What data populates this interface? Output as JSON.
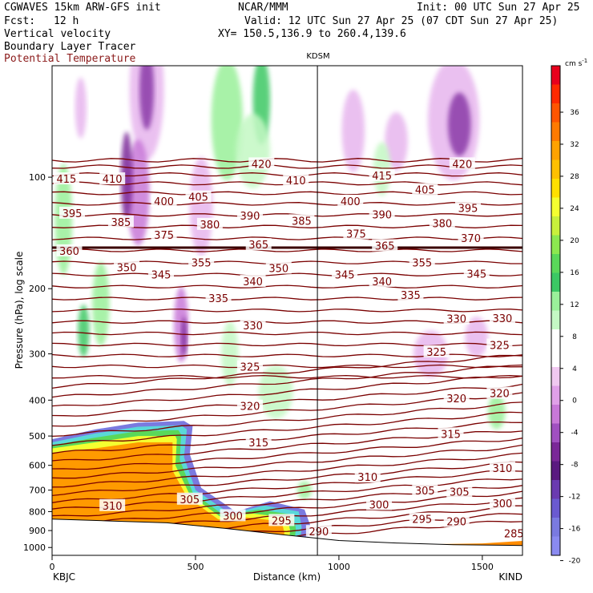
{
  "header": {
    "model": "CGWAVES 15km ARW-GFS init",
    "org": "NCAR/MMM",
    "init": "Init: 00 UTC Sun 27 Apr 25",
    "fcst_label": "Fcst:",
    "fcst_value": "12 h",
    "valid": "Valid: 12 UTC Sun 27 Apr 25 (07 CDT Sun 27 Apr 25)",
    "xy": "XY= 150.5,136.9 to 260.4,139.6",
    "field1": "Vertical velocity",
    "field2": "Boundary Layer Tracer",
    "field3": "Potential Temperature"
  },
  "colors": {
    "theta": "#7a0000",
    "terrain": "#000000"
  },
  "chart_data": {
    "type": "heatmap",
    "title": "KDSM",
    "xlabel": "Distance (km)",
    "ylabel": "Pressure (hPa), log scale",
    "x_ticks": [
      "0",
      "500",
      "1000",
      "1500"
    ],
    "xlim": [
      0,
      1640
    ],
    "y_ticks": [
      "100",
      "200",
      "300",
      "400",
      "500",
      "600",
      "700",
      "800",
      "900",
      "1000"
    ],
    "ylim": [
      1050,
      50
    ],
    "y_scale": "log",
    "start_station": "KBJC",
    "end_station": "KIND",
    "marker_station": "KDSM",
    "marker_x": 925,
    "colorbar": {
      "unit": "cm s",
      "unit_exp": "-1",
      "labels": [
        "36",
        "32",
        "28",
        "24",
        "20",
        "16",
        "12",
        "8",
        "4",
        "0",
        "-4",
        "-8",
        "-12",
        "-16",
        "-20"
      ],
      "colors": [
        "#e8001c",
        "#ff2a00",
        "#ff5500",
        "#ff7a00",
        "#ffa200",
        "#ffc000",
        "#ffe000",
        "#f4ff30",
        "#c8f03c",
        "#8ce850",
        "#5ad85a",
        "#3cc864",
        "#9af09a",
        "#c4f8c4",
        "#ffffff",
        "#ffffff",
        "#f0c8f0",
        "#e0a0e8",
        "#c878d8",
        "#a050c0",
        "#7a2898",
        "#5a1a80",
        "#6a3ab0",
        "#6a5ad0",
        "#7a7ae0",
        "#8a8af0"
      ]
    },
    "theta_labels": [
      {
        "v": "420",
        "x": 730,
        "p": 92
      },
      {
        "v": "420",
        "x": 1430,
        "p": 92
      },
      {
        "v": "415",
        "x": 50,
        "p": 101
      },
      {
        "v": "415",
        "x": 1150,
        "p": 99
      },
      {
        "v": "410",
        "x": 210,
        "p": 101
      },
      {
        "v": "410",
        "x": 850,
        "p": 102
      },
      {
        "v": "405",
        "x": 510,
        "p": 113
      },
      {
        "v": "405",
        "x": 1300,
        "p": 108
      },
      {
        "v": "400",
        "x": 390,
        "p": 116
      },
      {
        "v": "400",
        "x": 1040,
        "p": 116
      },
      {
        "v": "395",
        "x": 70,
        "p": 125
      },
      {
        "v": "395",
        "x": 1450,
        "p": 121
      },
      {
        "v": "390",
        "x": 690,
        "p": 127
      },
      {
        "v": "390",
        "x": 1150,
        "p": 126
      },
      {
        "v": "385",
        "x": 240,
        "p": 132
      },
      {
        "v": "385",
        "x": 870,
        "p": 131
      },
      {
        "v": "380",
        "x": 550,
        "p": 134
      },
      {
        "v": "380",
        "x": 1360,
        "p": 133
      },
      {
        "v": "375",
        "x": 390,
        "p": 143
      },
      {
        "v": "375",
        "x": 1060,
        "p": 142
      },
      {
        "v": "370",
        "x": 1460,
        "p": 146
      },
      {
        "v": "365",
        "x": 720,
        "p": 152
      },
      {
        "v": "365",
        "x": 1160,
        "p": 153
      },
      {
        "v": "360",
        "x": 60,
        "p": 158
      },
      {
        "v": "355",
        "x": 520,
        "p": 170
      },
      {
        "v": "355",
        "x": 1290,
        "p": 170
      },
      {
        "v": "350",
        "x": 260,
        "p": 175
      },
      {
        "v": "350",
        "x": 790,
        "p": 176
      },
      {
        "v": "345",
        "x": 380,
        "p": 183
      },
      {
        "v": "345",
        "x": 1020,
        "p": 183
      },
      {
        "v": "345",
        "x": 1480,
        "p": 182
      },
      {
        "v": "340",
        "x": 700,
        "p": 191
      },
      {
        "v": "340",
        "x": 1150,
        "p": 191
      },
      {
        "v": "335",
        "x": 580,
        "p": 212
      },
      {
        "v": "335",
        "x": 1250,
        "p": 208
      },
      {
        "v": "330",
        "x": 700,
        "p": 251
      },
      {
        "v": "330",
        "x": 1410,
        "p": 241
      },
      {
        "v": "330",
        "x": 1570,
        "p": 240
      },
      {
        "v": "325",
        "x": 690,
        "p": 325
      },
      {
        "v": "325",
        "x": 1340,
        "p": 296
      },
      {
        "v": "325",
        "x": 1560,
        "p": 284
      },
      {
        "v": "320",
        "x": 690,
        "p": 415
      },
      {
        "v": "320",
        "x": 1410,
        "p": 395
      },
      {
        "v": "320",
        "x": 1560,
        "p": 383
      },
      {
        "v": "315",
        "x": 720,
        "p": 520
      },
      {
        "v": "315",
        "x": 1390,
        "p": 493
      },
      {
        "v": "310",
        "x": 210,
        "p": 770
      },
      {
        "v": "310",
        "x": 1100,
        "p": 645
      },
      {
        "v": "310",
        "x": 1570,
        "p": 610
      },
      {
        "v": "305",
        "x": 480,
        "p": 740
      },
      {
        "v": "305",
        "x": 1300,
        "p": 702
      },
      {
        "v": "305",
        "x": 1420,
        "p": 707
      },
      {
        "v": "300",
        "x": 630,
        "p": 820
      },
      {
        "v": "300",
        "x": 1140,
        "p": 765
      },
      {
        "v": "300",
        "x": 1570,
        "p": 760
      },
      {
        "v": "295",
        "x": 800,
        "p": 845
      },
      {
        "v": "295",
        "x": 1290,
        "p": 838
      },
      {
        "v": "290",
        "x": 930,
        "p": 905
      },
      {
        "v": "290",
        "x": 1410,
        "p": 850
      },
      {
        "v": "285",
        "x": 1610,
        "p": 915
      }
    ]
  }
}
